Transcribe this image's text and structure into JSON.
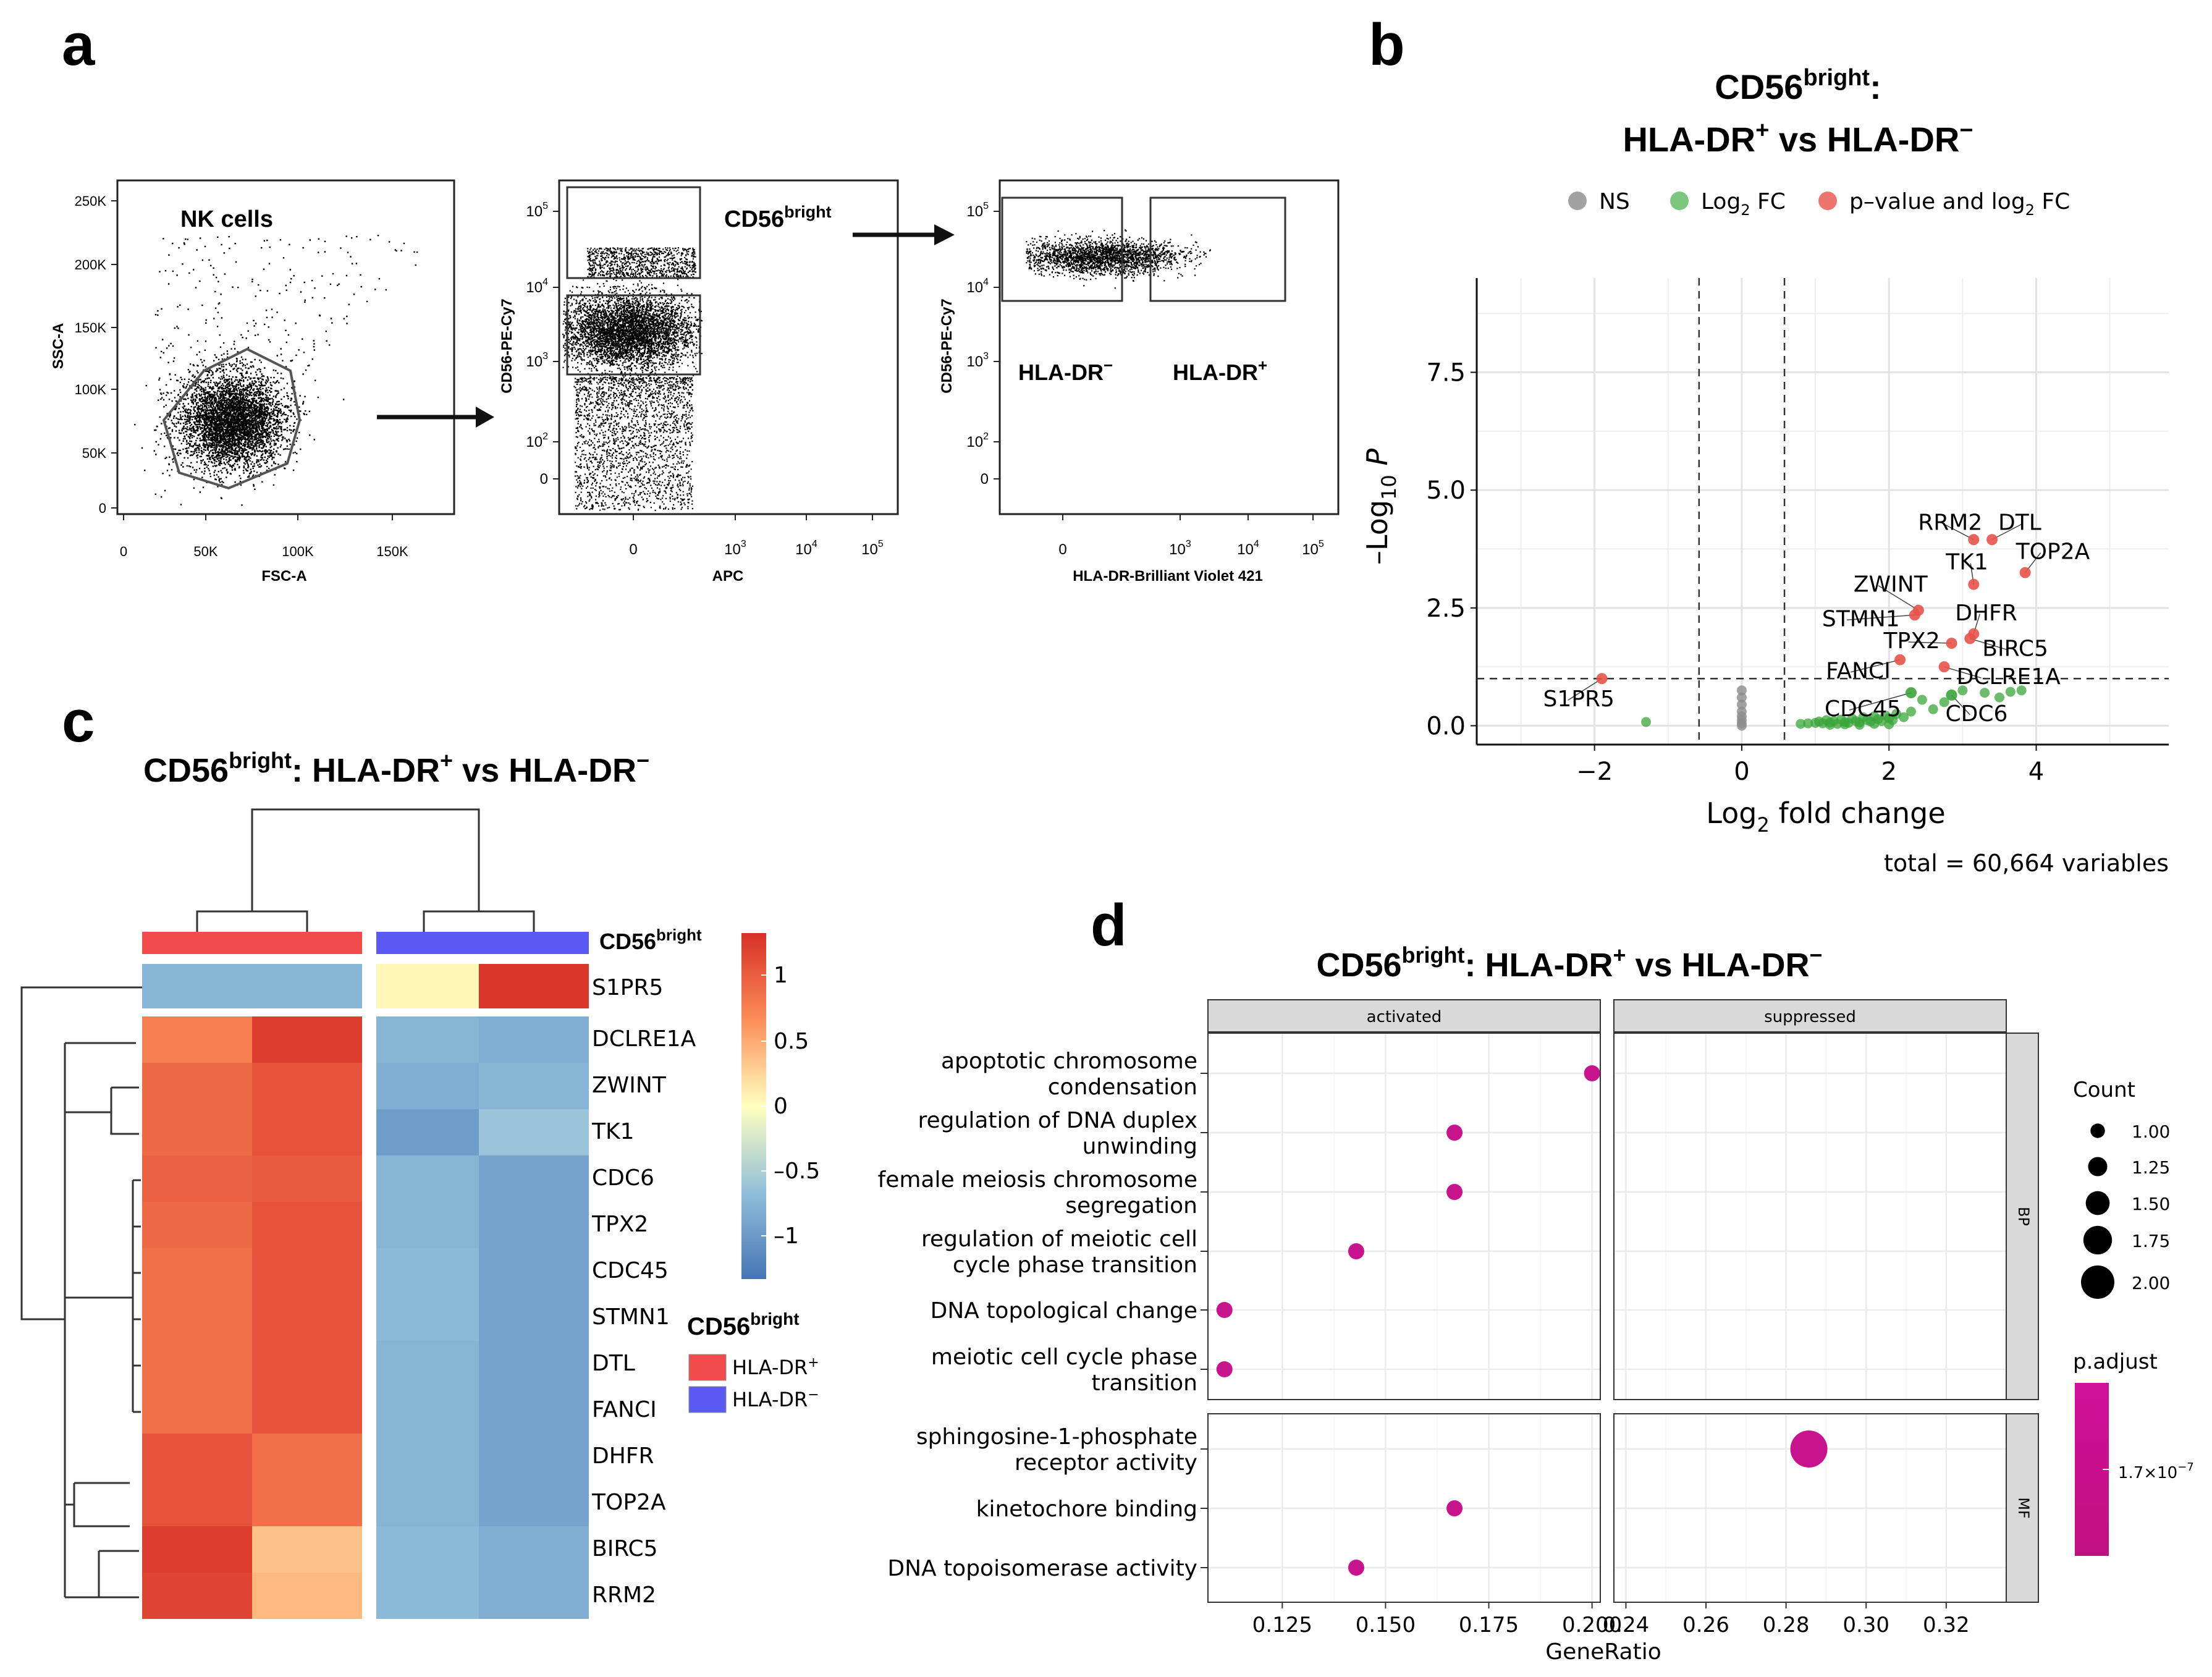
{
  "panels": {
    "a": "a",
    "b": "b",
    "c": "c",
    "d": "d"
  },
  "panel_a": {
    "gate1": {
      "label": "NK cells",
      "xlabel": "FSC-A",
      "ylabel": "SSC-A",
      "x_ticks": [
        "0",
        "50K",
        "100K",
        "150K"
      ],
      "y_ticks": [
        "0",
        "50K",
        "100K",
        "150K",
        "200K",
        "250K"
      ]
    },
    "gate2": {
      "label_main": "CD56",
      "label_sup": "bright",
      "xlabel": "APC",
      "ylabel": "CD56-PE-Cy7",
      "x_ticks": [
        {
          "b": "0",
          "e": ""
        },
        {
          "b": "10",
          "e": "3"
        },
        {
          "b": "10",
          "e": "4"
        },
        {
          "b": "10",
          "e": "5"
        }
      ],
      "y_ticks": [
        {
          "b": "0",
          "e": ""
        },
        {
          "b": "10",
          "e": "2"
        },
        {
          "b": "10",
          "e": "3"
        },
        {
          "b": "10",
          "e": "4"
        },
        {
          "b": "10",
          "e": "5"
        }
      ]
    },
    "gate3": {
      "label_neg": "HLA-DR",
      "neg_sup": "−",
      "label_pos": "HLA-DR",
      "pos_sup": "+",
      "xlabel": "HLA-DR-Brilliant Violet 421",
      "ylabel": "CD56-PE-Cy7",
      "x_ticks": [
        {
          "b": "0",
          "e": ""
        },
        {
          "b": "10",
          "e": "3"
        },
        {
          "b": "10",
          "e": "4"
        },
        {
          "b": "10",
          "e": "5"
        }
      ],
      "y_ticks": [
        {
          "b": "0",
          "e": ""
        },
        {
          "b": "10",
          "e": "2"
        },
        {
          "b": "10",
          "e": "3"
        },
        {
          "b": "10",
          "e": "4"
        },
        {
          "b": "10",
          "e": "5"
        }
      ]
    }
  },
  "panel_b": {
    "title_l1_main": "CD56",
    "title_l1_sup": "bright",
    "title_l1_end": ":",
    "title_l2_a": "HLA-DR",
    "title_l2_a_sup": "+",
    "title_l2_mid": " vs HLA-DR",
    "title_l2_b_sup": "−",
    "legend": [
      {
        "label": "NS",
        "sub": "",
        "rest": "",
        "color": "#8c8c8c"
      },
      {
        "label": "Log",
        "sub": "2",
        "rest": " FC",
        "color": "#5cb85c"
      },
      {
        "label": "p–value and log",
        "sub": "2",
        "rest": " FC",
        "color": "#e8534a"
      }
    ],
    "xlabel_a": "Log",
    "xlabel_sub": "2",
    "xlabel_b": " fold change",
    "ylabel_a": "–Log",
    "ylabel_sub": "10",
    "ylabel_b": " P",
    "caption": "total = 60,664 variables"
  },
  "panel_c": {
    "title_a": "CD56",
    "title_sup": "bright",
    "title_b": ": HLA-DR",
    "title_sup2": "+",
    "title_c": " vs HLA-DR",
    "title_sup3": "−",
    "annotation_label": "CD56",
    "annotation_sup": "bright",
    "legend_title": "CD56",
    "legend_title_sup": "bright",
    "legend_items": [
      {
        "label": "HLA-DR",
        "sup": "+",
        "color": "#f24b4b"
      },
      {
        "label": "HLA-DR",
        "sup": "−",
        "color": "#5a5af5"
      }
    ],
    "colorbar_ticks": [
      "1",
      "0.5",
      "0",
      "–0.5",
      "–1"
    ]
  },
  "panel_d": {
    "title_a": "CD56",
    "title_sup": "bright",
    "title_b": ": HLA-DR",
    "title_sup2": "+",
    "title_c": " vs HLA-DR",
    "title_sup3": "−",
    "xlabel": "GeneRatio",
    "count_title": "Count",
    "padj_title": "p.adjust",
    "padj_tick_b": "1.7×10",
    "padj_tick_e": "−7"
  },
  "chart_data": [
    {
      "type": "scatter",
      "title": "CD56bright: HLA-DR+ vs HLA-DR−",
      "xlabel": "Log2 fold change",
      "ylabel": "–Log10 P",
      "xlim": [
        -3.6,
        5.8
      ],
      "ylim": [
        -0.4,
        9.5
      ],
      "x_ticks": [
        "−2",
        "0",
        "2",
        "4"
      ],
      "y_ticks": [
        "0.0",
        "2.5",
        "5.0",
        "7.5"
      ],
      "thresholds": {
        "fc": [
          -0.58,
          0.58
        ],
        "p": 1.0
      },
      "labeled_points": [
        {
          "name": "RRM2",
          "x": 3.15,
          "y": 3.95,
          "group": "sig"
        },
        {
          "name": "DTL",
          "x": 3.4,
          "y": 3.95,
          "group": "sig"
        },
        {
          "name": "TOP2A",
          "x": 3.85,
          "y": 3.25,
          "group": "sig"
        },
        {
          "name": "TK1",
          "x": 3.15,
          "y": 3.0,
          "group": "sig"
        },
        {
          "name": "ZWINT",
          "x": 2.4,
          "y": 2.45,
          "group": "sig"
        },
        {
          "name": "STMN1",
          "x": 2.35,
          "y": 2.35,
          "group": "sig"
        },
        {
          "name": "DHFR",
          "x": 3.15,
          "y": 1.95,
          "group": "sig"
        },
        {
          "name": "TPX2",
          "x": 2.85,
          "y": 1.75,
          "group": "sig"
        },
        {
          "name": "BIRC5",
          "x": 3.1,
          "y": 1.85,
          "group": "sig"
        },
        {
          "name": "FANCI",
          "x": 2.15,
          "y": 1.4,
          "group": "sig"
        },
        {
          "name": "DCLRE1A",
          "x": 2.75,
          "y": 1.25,
          "group": "sig"
        },
        {
          "name": "S1PR5",
          "x": -1.9,
          "y": 1.0,
          "group": "sig"
        },
        {
          "name": "CDC45",
          "x": 2.3,
          "y": 0.7,
          "group": "fc"
        },
        {
          "name": "CDC6",
          "x": 2.85,
          "y": 0.65,
          "group": "fc"
        }
      ],
      "label_offsets_note": "labels placed near points",
      "fc_points": [
        [
          -1.3,
          0.08
        ],
        [
          0.8,
          0.04
        ],
        [
          0.9,
          0.05
        ],
        [
          1.0,
          0.06
        ],
        [
          1.05,
          0.09
        ],
        [
          1.1,
          0.05
        ],
        [
          1.15,
          0.12
        ],
        [
          1.2,
          0.07
        ],
        [
          1.25,
          0.1
        ],
        [
          1.3,
          0.04
        ],
        [
          1.35,
          0.13
        ],
        [
          1.4,
          0.08
        ],
        [
          1.45,
          0.06
        ],
        [
          1.5,
          0.15
        ],
        [
          1.55,
          0.1
        ],
        [
          1.6,
          0.07
        ],
        [
          1.65,
          0.18
        ],
        [
          1.7,
          0.12
        ],
        [
          1.75,
          0.09
        ],
        [
          1.8,
          0.2
        ],
        [
          1.85,
          0.14
        ],
        [
          1.9,
          0.1
        ],
        [
          1.95,
          0.22
        ],
        [
          2.0,
          0.16
        ],
        [
          2.05,
          0.12
        ],
        [
          2.1,
          0.25
        ],
        [
          2.2,
          0.18
        ],
        [
          2.3,
          0.3
        ],
        [
          2.45,
          0.55
        ],
        [
          2.6,
          0.35
        ],
        [
          2.75,
          0.5
        ],
        [
          3.0,
          0.75
        ],
        [
          3.3,
          0.7
        ],
        [
          3.5,
          0.6
        ],
        [
          3.65,
          0.72
        ],
        [
          3.8,
          0.75
        ],
        [
          1.2,
          0.02
        ],
        [
          1.4,
          0.03
        ],
        [
          1.6,
          0.02
        ],
        [
          1.8,
          0.04
        ],
        [
          2.0,
          0.03
        ]
      ],
      "ns_points": [
        [
          0.0,
          0.0
        ],
        [
          0.0,
          0.05
        ],
        [
          0.0,
          0.12
        ],
        [
          0.0,
          0.2
        ],
        [
          0.0,
          0.3
        ],
        [
          0.0,
          0.45
        ],
        [
          0.0,
          0.6
        ],
        [
          0.0,
          0.75
        ]
      ]
    },
    {
      "type": "heatmap",
      "title": "CD56bright: HLA-DR+ vs HLA-DR−",
      "rows": [
        "S1PR5",
        "DCLRE1A",
        "ZWINT",
        "TK1",
        "CDC6",
        "TPX2",
        "CDC45",
        "STMN1",
        "DTL",
        "FANCI",
        "DHFR",
        "TOP2A",
        "BIRC5",
        "RRM2"
      ],
      "column_groups": [
        "HLA-DR+",
        "HLA-DR+",
        "HLA-DR−",
        "HLA-DR−"
      ],
      "values": [
        [
          -0.75,
          -0.75,
          0.05,
          1.25
        ],
        [
          0.75,
          1.2,
          -0.75,
          -0.8
        ],
        [
          0.9,
          1.05,
          -0.8,
          -0.75
        ],
        [
          0.9,
          1.05,
          -0.95,
          -0.6
        ],
        [
          0.95,
          1.0,
          -0.75,
          -0.9
        ],
        [
          0.9,
          1.05,
          -0.75,
          -0.9
        ],
        [
          0.85,
          1.05,
          -0.7,
          -0.9
        ],
        [
          0.85,
          1.05,
          -0.7,
          -0.9
        ],
        [
          0.85,
          1.05,
          -0.75,
          -0.9
        ],
        [
          0.85,
          1.05,
          -0.75,
          -0.9
        ],
        [
          1.05,
          0.85,
          -0.75,
          -0.9
        ],
        [
          1.05,
          0.85,
          -0.75,
          -0.9
        ],
        [
          1.2,
          0.35,
          -0.7,
          -0.8
        ],
        [
          1.15,
          0.4,
          -0.7,
          -0.8
        ]
      ],
      "colorbar_range": [
        -1.3,
        1.3
      ]
    },
    {
      "type": "scatter",
      "title": "CD56bright: HLA-DR+ vs HLA-DR−",
      "xlabel": "GeneRatio",
      "facets_x": [
        "activated",
        "suppressed"
      ],
      "facets_y": [
        "BP",
        "MF"
      ],
      "activated_xlim": [
        0.107,
        0.202
      ],
      "suppressed_xlim": [
        0.237,
        0.335
      ],
      "activated_x_ticks": [
        "0.125",
        "0.150",
        "0.175",
        "0.200"
      ],
      "suppressed_x_ticks": [
        "0.24",
        "0.26",
        "0.28",
        "0.30",
        "0.32"
      ],
      "terms_BP": [
        {
          "l1": "apoptotic chromosome",
          "l2": "condensation"
        },
        {
          "l1": "regulation of DNA duplex",
          "l2": "unwinding"
        },
        {
          "l1": "female meiosis chromosome",
          "l2": "segregation"
        },
        {
          "l1": "regulation of meiotic cell",
          "l2": "cycle phase transition"
        },
        {
          "l1": "DNA topological change",
          "l2": ""
        },
        {
          "l1": "meiotic cell cycle phase",
          "l2": "transition"
        }
      ],
      "terms_MF": [
        {
          "l1": "sphingosine-1-phosphate",
          "l2": "receptor activity"
        },
        {
          "l1": "kinetochore binding",
          "l2": ""
        },
        {
          "l1": "DNA topoisomerase activity",
          "l2": ""
        }
      ],
      "points": [
        {
          "facet": "activated",
          "row": "BP",
          "idx": 0,
          "x": 0.2,
          "count": 1
        },
        {
          "facet": "activated",
          "row": "BP",
          "idx": 1,
          "x": 0.1667,
          "count": 1
        },
        {
          "facet": "activated",
          "row": "BP",
          "idx": 2,
          "x": 0.1667,
          "count": 1
        },
        {
          "facet": "activated",
          "row": "BP",
          "idx": 3,
          "x": 0.1429,
          "count": 1
        },
        {
          "facet": "activated",
          "row": "BP",
          "idx": 4,
          "x": 0.111,
          "count": 1
        },
        {
          "facet": "activated",
          "row": "BP",
          "idx": 5,
          "x": 0.111,
          "count": 1
        },
        {
          "facet": "suppressed",
          "row": "MF",
          "idx": 0,
          "x": 0.2857,
          "count": 2
        },
        {
          "facet": "activated",
          "row": "MF",
          "idx": 1,
          "x": 0.1667,
          "count": 1
        },
        {
          "facet": "activated",
          "row": "MF",
          "idx": 2,
          "x": 0.1429,
          "count": 1
        }
      ],
      "count_legend": [
        "1.00",
        "1.25",
        "1.50",
        "1.75",
        "2.00"
      ],
      "point_color": "#c8148c"
    }
  ]
}
